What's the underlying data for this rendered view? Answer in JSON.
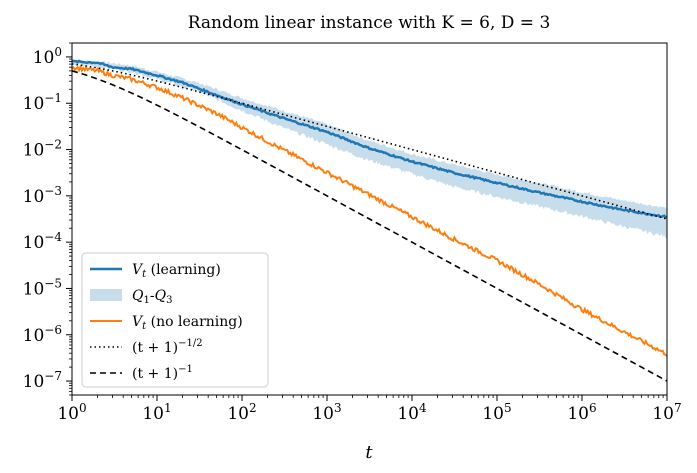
{
  "chart_data": {
    "type": "line",
    "title": "Random linear instance with K = 6, D = 3",
    "xlabel": "t",
    "ylabel": "",
    "xscale": "log",
    "yscale": "log",
    "xlim": [
      1,
      10000000
    ],
    "ylim": [
      5e-08,
      2
    ],
    "x_ticks": [
      {
        "value": 1,
        "base": "10",
        "exp": "0"
      },
      {
        "value": 10,
        "base": "10",
        "exp": "1"
      },
      {
        "value": 100,
        "base": "10",
        "exp": "2"
      },
      {
        "value": 1000,
        "base": "10",
        "exp": "3"
      },
      {
        "value": 10000,
        "base": "10",
        "exp": "4"
      },
      {
        "value": 100000,
        "base": "10",
        "exp": "5"
      },
      {
        "value": 1000000,
        "base": "10",
        "exp": "6"
      },
      {
        "value": 10000000,
        "base": "10",
        "exp": "7"
      }
    ],
    "y_ticks": [
      {
        "value": 1,
        "base": "10",
        "exp": "0"
      },
      {
        "value": 0.1,
        "base": "10",
        "exp": "−1"
      },
      {
        "value": 0.01,
        "base": "10",
        "exp": "−2"
      },
      {
        "value": 0.001,
        "base": "10",
        "exp": "−3"
      },
      {
        "value": 0.0001,
        "base": "10",
        "exp": "−4"
      },
      {
        "value": 1e-05,
        "base": "10",
        "exp": "−5"
      },
      {
        "value": 1e-06,
        "base": "10",
        "exp": "−6"
      },
      {
        "value": 1e-07,
        "base": "10",
        "exp": "−7"
      }
    ],
    "series": [
      {
        "name": "V_t (learning)",
        "kind": "line",
        "color": "#1f77b4",
        "x": [
          1,
          2,
          3,
          5,
          10,
          20,
          50,
          100,
          300,
          1000,
          3000,
          10000,
          30000,
          100000,
          300000,
          1000000,
          3000000,
          10000000
        ],
        "y": [
          0.8,
          0.75,
          0.6,
          0.55,
          0.4,
          0.28,
          0.15,
          0.095,
          0.048,
          0.024,
          0.011,
          0.0055,
          0.0032,
          0.0019,
          0.0012,
          0.00075,
          0.0005,
          0.00035
        ]
      },
      {
        "name": "Q1-Q3",
        "kind": "band",
        "color": "#1f77b4",
        "x": [
          1,
          2,
          5,
          10,
          30,
          100,
          300,
          1000,
          3000,
          10000,
          30000,
          100000,
          300000,
          1000000,
          3000000,
          10000000
        ],
        "upper": [
          0.85,
          0.8,
          0.65,
          0.48,
          0.28,
          0.13,
          0.07,
          0.035,
          0.016,
          0.008,
          0.0048,
          0.0029,
          0.0019,
          0.0012,
          0.0008,
          0.00055
        ],
        "lower": [
          0.7,
          0.62,
          0.48,
          0.33,
          0.18,
          0.07,
          0.03,
          0.013,
          0.006,
          0.003,
          0.0016,
          0.00095,
          0.0006,
          0.00036,
          0.00022,
          0.00013
        ]
      },
      {
        "name": "V_t (no learning)",
        "kind": "line",
        "color": "#ff7f0e",
        "x": [
          1,
          2,
          3,
          5,
          10,
          20,
          50,
          100,
          300,
          1000,
          3000,
          10000,
          30000,
          100000,
          300000,
          1000000,
          3000000,
          10000000
        ],
        "y": [
          0.6,
          0.5,
          0.4,
          0.33,
          0.22,
          0.13,
          0.06,
          0.03,
          0.01,
          0.0032,
          0.0011,
          0.00035,
          0.00012,
          4e-05,
          1.3e-05,
          3.5e-06,
          1.2e-06,
          3.8e-07
        ]
      },
      {
        "name": "(t+1)^(−1/2)",
        "kind": "line",
        "style": "dotted",
        "color": "#000000",
        "formula": "(t+1)^(-1/2)"
      },
      {
        "name": "(t+1)^(−1)",
        "kind": "line",
        "style": "dashed",
        "color": "#000000",
        "formula": "(t+1)^(-1)"
      }
    ],
    "legend": {
      "placement": "lower-left",
      "entries": [
        {
          "label": "V_t (learning)",
          "main": "V",
          "sub": "t",
          "rest": " (learning)"
        },
        {
          "label": "Q1-Q3",
          "q": "Q",
          "sub1": "1",
          "dash": "-",
          "q2": "Q",
          "sub2": "3"
        },
        {
          "label": "V_t (no learning)",
          "main": "V",
          "sub": "t",
          "rest": " (no learning)"
        },
        {
          "label": "(t+1)^(−1/2)",
          "base": "(t + 1)",
          "exp": "−1/2"
        },
        {
          "label": "(t+1)^(−1)",
          "base": "(t + 1)",
          "exp": "−1"
        }
      ]
    }
  }
}
